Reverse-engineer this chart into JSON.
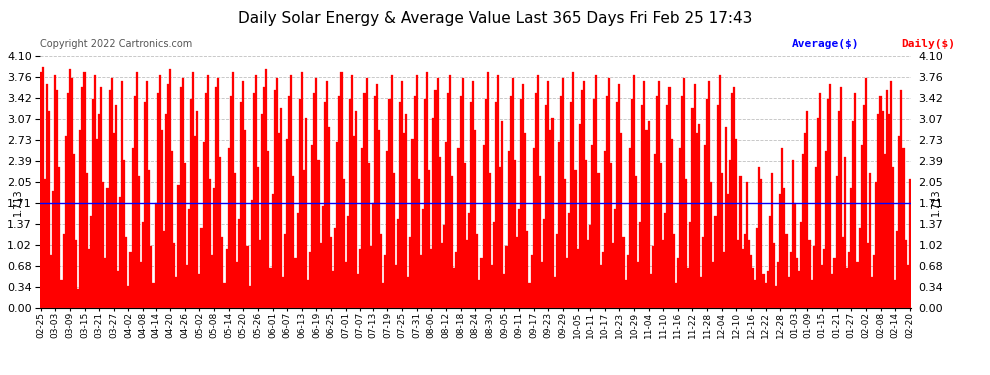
{
  "title": "Daily Solar Energy & Average Value Last 365 Days Fri Feb 25 17:43",
  "copyright": "Copyright 2022 Cartronics.com",
  "average_value": 1.713,
  "average_label": "1.713",
  "ylim": [
    0.0,
    4.1
  ],
  "yticks": [
    0.0,
    0.34,
    0.68,
    1.02,
    1.37,
    1.71,
    2.05,
    2.39,
    2.73,
    3.07,
    3.42,
    3.76,
    4.1
  ],
  "bar_color": "#ff0000",
  "bar_edge_color": "#ff0000",
  "avg_line_color": "#0000ff",
  "bg_color": "#ffffff",
  "grid_color": "#b0b0b0",
  "title_color": "#000000",
  "legend_avg_color": "#0000ff",
  "legend_daily_color": "#ff0000",
  "copyright_color": "#555555",
  "avg_label_color": "#000000",
  "x_label_rotation": 90,
  "figsize": [
    9.9,
    3.75
  ],
  "dpi": 100,
  "x_dates": [
    "02-25",
    "03-03",
    "03-09",
    "03-15",
    "03-21",
    "03-27",
    "04-02",
    "04-08",
    "04-14",
    "04-20",
    "04-26",
    "05-02",
    "05-08",
    "05-14",
    "05-20",
    "05-26",
    "06-01",
    "06-07",
    "06-13",
    "06-19",
    "06-25",
    "07-01",
    "07-07",
    "07-13",
    "07-19",
    "07-25",
    "07-31",
    "08-06",
    "08-12",
    "08-18",
    "08-24",
    "08-30",
    "09-05",
    "09-11",
    "09-17",
    "09-23",
    "09-29",
    "10-05",
    "10-11",
    "10-17",
    "10-23",
    "10-29",
    "11-04",
    "11-10",
    "11-16",
    "11-22",
    "11-28",
    "12-04",
    "12-10",
    "12-16",
    "12-22",
    "12-28",
    "01-03",
    "01-09",
    "01-15",
    "01-21",
    "01-27",
    "02-02",
    "02-08",
    "02-14",
    "02-20"
  ],
  "values": [
    3.85,
    3.92,
    2.1,
    3.65,
    3.2,
    0.85,
    1.9,
    3.8,
    3.55,
    2.3,
    0.45,
    1.2,
    2.8,
    3.5,
    3.9,
    3.75,
    2.5,
    1.1,
    0.3,
    2.9,
    3.6,
    3.85,
    2.2,
    0.95,
    1.5,
    3.4,
    3.8,
    2.75,
    3.15,
    3.6,
    2.05,
    0.8,
    1.95,
    3.55,
    3.75,
    2.85,
    3.3,
    0.6,
    1.8,
    3.7,
    2.4,
    1.15,
    0.35,
    0.9,
    2.6,
    3.45,
    3.85,
    2.15,
    0.75,
    1.4,
    3.35,
    3.7,
    2.25,
    1.0,
    0.4,
    1.7,
    3.5,
    3.8,
    2.9,
    1.25,
    3.15,
    3.65,
    3.9,
    2.55,
    1.05,
    0.5,
    2.0,
    3.6,
    3.75,
    2.35,
    0.7,
    1.6,
    3.4,
    3.85,
    2.8,
    3.2,
    0.55,
    1.3,
    2.7,
    3.5,
    3.8,
    2.1,
    0.85,
    1.95,
    3.6,
    3.75,
    2.45,
    1.15,
    0.4,
    0.95,
    2.6,
    3.45,
    3.85,
    2.2,
    0.75,
    1.45,
    3.35,
    3.7,
    2.9,
    1.0,
    0.35,
    1.75,
    3.5,
    3.8,
    2.3,
    1.1,
    3.15,
    3.6,
    3.9,
    2.55,
    0.65,
    1.85,
    3.55,
    3.75,
    2.85,
    3.25,
    0.5,
    1.2,
    2.75,
    3.45,
    3.8,
    2.15,
    0.8,
    1.55,
    3.4,
    3.85,
    2.25,
    3.1,
    0.45,
    0.9,
    2.65,
    3.5,
    3.75,
    2.4,
    1.05,
    1.65,
    3.35,
    3.7,
    2.95,
    1.15,
    0.6,
    1.3,
    2.7,
    3.45,
    3.85,
    2.1,
    0.75,
    1.5,
    3.4,
    3.8,
    2.8,
    3.2,
    0.55,
    0.95,
    2.6,
    3.5,
    3.75,
    2.35,
    1.0,
    1.7,
    3.45,
    3.65,
    2.9,
    1.2,
    0.4,
    0.85,
    2.55,
    3.4,
    3.8,
    2.2,
    0.7,
    1.45,
    3.35,
    3.7,
    2.85,
    3.15,
    0.5,
    1.15,
    2.75,
    3.45,
    3.8,
    2.1,
    0.85,
    1.6,
    3.4,
    3.85,
    2.25,
    0.95,
    3.1,
    3.55,
    3.75,
    2.45,
    1.05,
    1.35,
    2.7,
    3.5,
    3.8,
    2.15,
    0.65,
    0.9,
    2.6,
    3.45,
    3.75,
    2.35,
    1.1,
    1.55,
    3.35,
    3.7,
    2.9,
    1.2,
    0.45,
    0.8,
    2.65,
    3.4,
    3.85,
    2.2,
    0.7,
    1.4,
    3.35,
    3.8,
    2.3,
    3.05,
    0.55,
    1.0,
    2.55,
    3.45,
    3.75,
    2.4,
    1.15,
    1.6,
    3.4,
    3.65,
    2.85,
    1.25,
    0.4,
    0.85,
    2.6,
    3.5,
    3.8,
    2.15,
    0.75,
    1.45,
    3.3,
    3.7,
    2.9,
    3.1,
    0.5,
    1.2,
    2.7,
    3.45,
    3.75,
    2.1,
    0.8,
    1.55,
    3.35,
    3.85,
    2.25,
    0.95,
    3.0,
    3.55,
    3.7,
    2.4,
    1.1,
    1.35,
    2.65,
    3.4,
    3.8,
    2.2,
    0.7,
    0.9,
    2.55,
    3.45,
    3.75,
    2.35,
    1.05,
    1.6,
    3.35,
    3.65,
    2.85,
    1.15,
    0.45,
    0.85,
    2.6,
    3.4,
    3.8,
    2.15,
    0.75,
    1.4,
    3.3,
    3.7,
    2.9,
    3.05,
    0.55,
    1.0,
    2.5,
    3.45,
    3.7,
    2.35,
    1.1,
    1.55,
    3.3,
    3.6,
    2.75,
    1.2,
    0.4,
    0.8,
    2.6,
    3.45,
    3.75,
    2.1,
    0.65,
    1.4,
    3.25,
    3.65,
    2.85,
    3.0,
    0.5,
    1.15,
    2.65,
    3.4,
    3.7,
    2.05,
    0.75,
    1.5,
    3.3,
    3.8,
    2.2,
    0.9,
    2.95,
    1.85,
    2.4,
    3.5,
    3.6,
    2.75,
    1.1,
    2.15,
    0.95,
    1.2,
    2.05,
    1.1,
    0.85,
    0.65,
    0.45,
    1.3,
    2.3,
    2.1,
    0.55,
    0.4,
    0.6,
    1.5,
    2.2,
    1.05,
    0.35,
    0.75,
    1.85,
    2.6,
    1.95,
    1.2,
    0.5,
    0.9,
    2.4,
    1.7,
    0.8,
    0.6,
    1.4,
    2.5,
    2.85,
    3.2,
    1.1,
    0.45,
    1.0,
    2.3,
    3.1,
    3.5,
    0.7,
    0.95,
    2.55,
    3.4,
    3.65,
    0.55,
    0.8,
    2.15,
    3.2,
    3.6,
    1.15,
    2.45,
    0.65,
    0.9,
    1.95,
    3.05,
    3.5,
    0.75,
    1.3,
    2.65,
    3.3,
    3.75,
    1.05,
    2.2,
    0.5,
    0.85,
    2.05,
    3.15,
    3.45,
    3.2,
    2.5,
    3.55,
    3.15,
    3.7,
    2.3,
    0.45,
    1.25,
    2.8,
    3.55,
    2.6,
    1.1,
    0.7,
    2.1
  ]
}
